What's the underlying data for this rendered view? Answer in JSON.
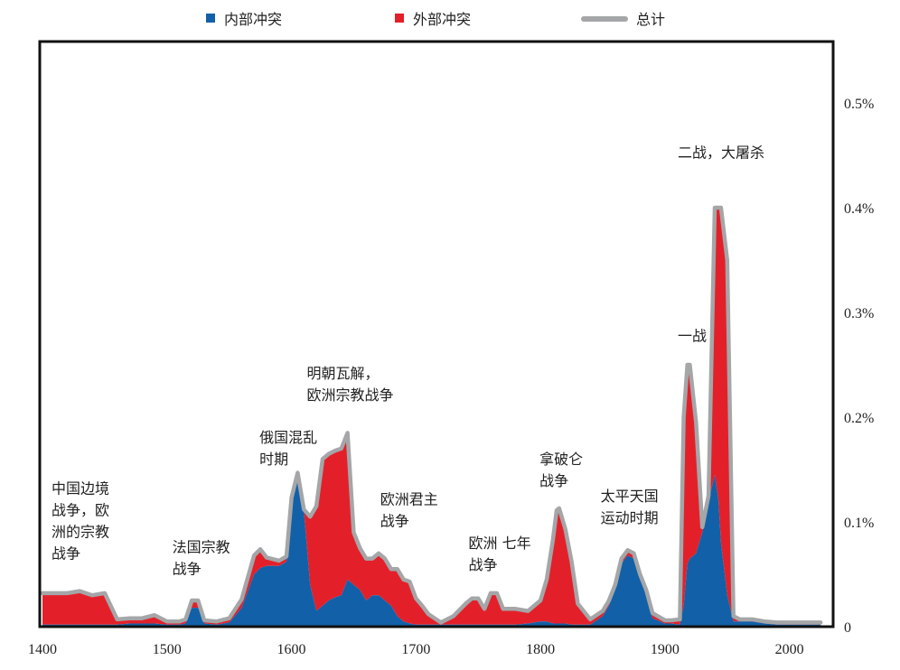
{
  "chart_data": {
    "type": "area",
    "title": "",
    "xlabel": "",
    "ylabel": "",
    "xlim": [
      1400,
      2030
    ],
    "ylim": [
      0,
      0.55
    ],
    "x_ticks": [
      {
        "value": 1400,
        "label": "1400"
      },
      {
        "value": 1500,
        "label": "1500"
      },
      {
        "value": 1600,
        "label": "1600"
      },
      {
        "value": 1700,
        "label": "1700"
      },
      {
        "value": 1800,
        "label": "1800"
      },
      {
        "value": 1900,
        "label": "1900"
      },
      {
        "value": 2000,
        "label": "2000"
      }
    ],
    "y_ticks": [
      {
        "value": 0,
        "label": "0"
      },
      {
        "value": 0.1,
        "label": "0.1%"
      },
      {
        "value": 0.2,
        "label": "0.2%"
      },
      {
        "value": 0.3,
        "label": "0.3%"
      },
      {
        "value": 0.4,
        "label": "0.4%"
      },
      {
        "value": 0.5,
        "label": "0.5%"
      }
    ],
    "legend": [
      {
        "name": "内部冲突",
        "color": "#1260a8",
        "marker": "square"
      },
      {
        "name": "外部冲突",
        "color": "#e3202a",
        "marker": "square"
      },
      {
        "name": "总计",
        "color": "#a4a6a8",
        "marker": "line"
      }
    ],
    "legend_position": "top",
    "grid": false,
    "x": [
      1400,
      1410,
      1420,
      1430,
      1440,
      1450,
      1460,
      1470,
      1480,
      1490,
      1500,
      1510,
      1515,
      1520,
      1525,
      1530,
      1540,
      1550,
      1560,
      1570,
      1575,
      1580,
      1590,
      1596,
      1600,
      1605,
      1610,
      1615,
      1620,
      1625,
      1630,
      1635,
      1640,
      1645,
      1650,
      1655,
      1660,
      1665,
      1670,
      1675,
      1680,
      1685,
      1690,
      1695,
      1700,
      1705,
      1710,
      1720,
      1730,
      1740,
      1745,
      1750,
      1755,
      1760,
      1765,
      1770,
      1775,
      1780,
      1790,
      1800,
      1805,
      1810,
      1813,
      1815,
      1820,
      1825,
      1830,
      1840,
      1850,
      1855,
      1860,
      1865,
      1870,
      1875,
      1880,
      1885,
      1890,
      1900,
      1905,
      1912,
      1915,
      1918,
      1920,
      1925,
      1930,
      1935,
      1940,
      1943,
      1945,
      1950,
      1955,
      1960,
      1970,
      1980,
      1990,
      2000,
      2010,
      2025
    ],
    "series": [
      {
        "name": "内部冲突",
        "color": "#1260a8",
        "values": [
          0.002,
          0.002,
          0.002,
          0.002,
          0.002,
          0.002,
          0.002,
          0.003,
          0.003,
          0.003,
          0.002,
          0.002,
          0.003,
          0.018,
          0.018,
          0.003,
          0.002,
          0.004,
          0.018,
          0.05,
          0.056,
          0.058,
          0.058,
          0.062,
          0.12,
          0.145,
          0.11,
          0.04,
          0.015,
          0.02,
          0.025,
          0.028,
          0.03,
          0.045,
          0.04,
          0.035,
          0.025,
          0.03,
          0.03,
          0.025,
          0.02,
          0.01,
          0.005,
          0.003,
          0.002,
          0.002,
          0.002,
          0.002,
          0.002,
          0.002,
          0.002,
          0.002,
          0.002,
          0.002,
          0.002,
          0.002,
          0.002,
          0.002,
          0.003,
          0.005,
          0.005,
          0.003,
          0.003,
          0.003,
          0.003,
          0.002,
          0.002,
          0.002,
          0.01,
          0.02,
          0.035,
          0.06,
          0.068,
          0.065,
          0.045,
          0.03,
          0.008,
          0.003,
          0.003,
          0.002,
          0.02,
          0.06,
          0.065,
          0.07,
          0.09,
          0.12,
          0.145,
          0.12,
          0.08,
          0.03,
          0.005,
          0.005,
          0.005,
          0.003,
          0.002,
          0.002,
          0.002,
          0.002
        ]
      },
      {
        "name": "外部冲突",
        "color": "#e3202a",
        "values": [
          0.03,
          0.03,
          0.03,
          0.032,
          0.028,
          0.03,
          0.005,
          0.005,
          0.005,
          0.008,
          0.003,
          0.003,
          0.004,
          0.007,
          0.007,
          0.003,
          0.003,
          0.004,
          0.008,
          0.018,
          0.018,
          0.008,
          0.005,
          0.005,
          0.003,
          0.002,
          0.002,
          0.065,
          0.1,
          0.14,
          0.14,
          0.14,
          0.14,
          0.14,
          0.05,
          0.04,
          0.04,
          0.035,
          0.04,
          0.04,
          0.035,
          0.045,
          0.04,
          0.04,
          0.025,
          0.018,
          0.01,
          0.002,
          0.008,
          0.02,
          0.025,
          0.025,
          0.015,
          0.03,
          0.03,
          0.015,
          0.015,
          0.015,
          0.012,
          0.02,
          0.04,
          0.08,
          0.108,
          0.11,
          0.09,
          0.06,
          0.02,
          0.005,
          0.005,
          0.005,
          0.005,
          0.005,
          0.005,
          0.005,
          0.005,
          0.005,
          0.005,
          0.003,
          0.003,
          0.005,
          0.18,
          0.19,
          0.185,
          0.125,
          0.005,
          0.005,
          0.255,
          0.28,
          0.32,
          0.32,
          0.005,
          0.002,
          0.002,
          0.002,
          0.002,
          0.002,
          0.002,
          0.002
        ]
      },
      {
        "name": "总计",
        "color": "#a4a6a8",
        "values": [
          0.032,
          0.032,
          0.032,
          0.034,
          0.03,
          0.032,
          0.007,
          0.008,
          0.008,
          0.011,
          0.005,
          0.005,
          0.007,
          0.025,
          0.025,
          0.006,
          0.005,
          0.008,
          0.026,
          0.068,
          0.074,
          0.066,
          0.063,
          0.067,
          0.123,
          0.147,
          0.112,
          0.105,
          0.115,
          0.16,
          0.165,
          0.168,
          0.17,
          0.185,
          0.09,
          0.075,
          0.065,
          0.065,
          0.07,
          0.065,
          0.055,
          0.055,
          0.045,
          0.043,
          0.027,
          0.02,
          0.012,
          0.004,
          0.01,
          0.022,
          0.027,
          0.027,
          0.017,
          0.032,
          0.032,
          0.017,
          0.017,
          0.017,
          0.015,
          0.025,
          0.045,
          0.083,
          0.111,
          0.113,
          0.093,
          0.062,
          0.022,
          0.007,
          0.015,
          0.025,
          0.04,
          0.065,
          0.073,
          0.07,
          0.05,
          0.035,
          0.013,
          0.006,
          0.006,
          0.007,
          0.2,
          0.25,
          0.25,
          0.195,
          0.095,
          0.125,
          0.4,
          0.4,
          0.4,
          0.35,
          0.01,
          0.007,
          0.007,
          0.005,
          0.004,
          0.004,
          0.004,
          0.004
        ]
      }
    ],
    "annotations": [
      {
        "x": 1400,
        "y": 0.127,
        "lines": [
          "中国边境",
          "战争，欧",
          "洲的宗教",
          "战争"
        ]
      },
      {
        "x": 1497,
        "y": 0.071,
        "lines": [
          "法国宗教",
          "战争"
        ]
      },
      {
        "x": 1567,
        "y": 0.176,
        "lines": [
          "俄国混乱",
          "时期"
        ]
      },
      {
        "x": 1605,
        "y": 0.237,
        "lines": [
          "明朝瓦解，",
          "欧洲宗教战争"
        ]
      },
      {
        "x": 1664,
        "y": 0.117,
        "lines": [
          "欧洲君主",
          "战争"
        ]
      },
      {
        "x": 1735,
        "y": 0.075,
        "lines": [
          "欧洲 七年",
          "战争"
        ]
      },
      {
        "x": 1792,
        "y": 0.155,
        "lines": [
          "拿破仑",
          "战争"
        ]
      },
      {
        "x": 1841,
        "y": 0.12,
        "lines": [
          "太平天国",
          "运动时期"
        ]
      },
      {
        "x": 1903,
        "y": 0.273,
        "lines": [
          "一战"
        ]
      },
      {
        "x": 1903,
        "y": 0.448,
        "lines": [
          "二战，大屠杀"
        ]
      }
    ]
  }
}
